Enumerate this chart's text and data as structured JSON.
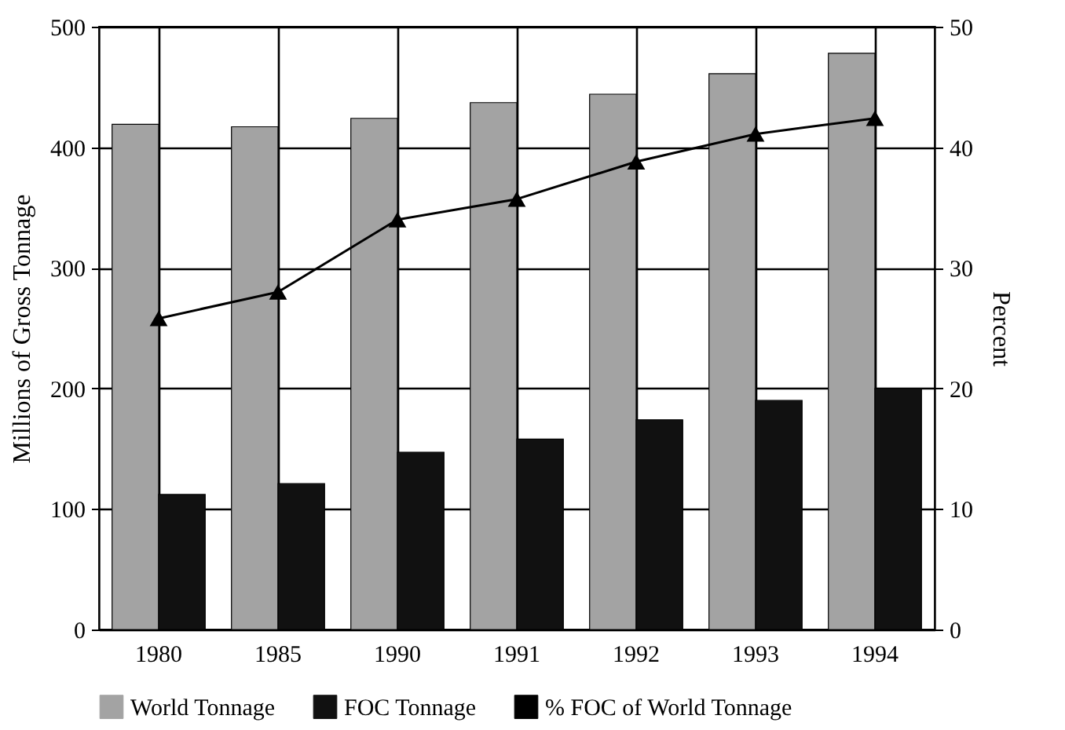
{
  "chart_data": {
    "type": "bar",
    "ylabel": "Millions of Gross Tonnage",
    "y2label": "Percent",
    "categories": [
      "1980",
      "1985",
      "1990",
      "1991",
      "1992",
      "1993",
      "1994"
    ],
    "series": [
      {
        "name": "World Tonnage",
        "color": "#a3a3a3",
        "values": [
          419,
          417,
          424,
          437,
          444,
          461,
          478
        ]
      },
      {
        "name": "FOC Tonnage",
        "color": "#111111",
        "values": [
          112,
          121,
          147,
          158,
          174,
          190,
          200
        ]
      },
      {
        "name": "% FOC of World Tonnage",
        "type": "line",
        "axis": "y2",
        "color": "#000000",
        "values": [
          25.8,
          28.0,
          34.0,
          35.7,
          38.8,
          41.1,
          42.4
        ]
      }
    ],
    "ylim": [
      0,
      500
    ],
    "yticks": [
      0,
      100,
      200,
      300,
      400,
      500
    ],
    "y2lim": [
      0,
      50
    ],
    "y2ticks": [
      0,
      10,
      20,
      30,
      40,
      50
    ],
    "grid": true,
    "legend": "bottom",
    "marker": "triangle",
    "line_style": "solid"
  }
}
